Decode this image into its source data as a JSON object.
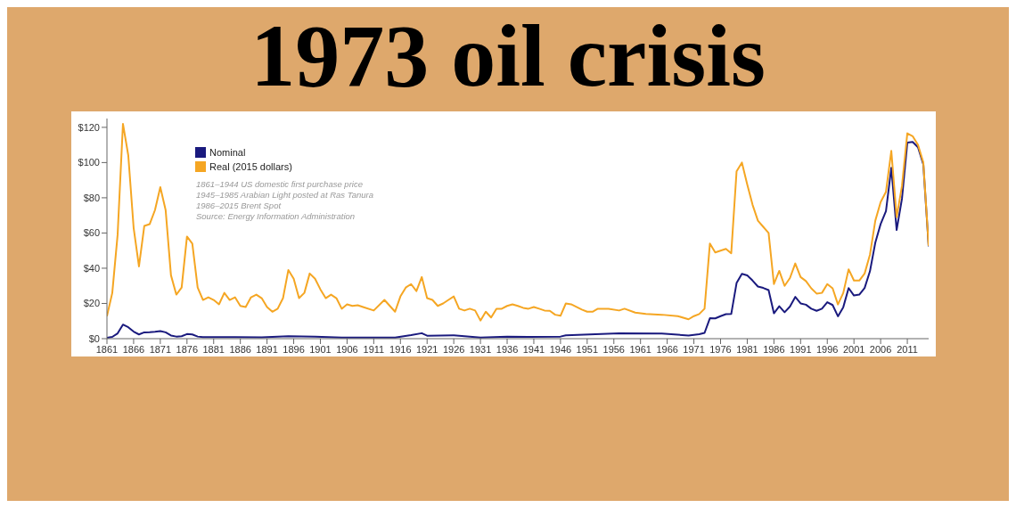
{
  "chart_data": {
    "type": "line",
    "title": "1973 oil crisis",
    "annotations": [
      "1861–1944 US domestic first purchase price",
      "1945–1985 Arabian Light posted at Ras Tanura",
      "1986–2015 Brent Spot",
      "Source: Energy Information Administration"
    ],
    "xlim": [
      1861,
      2015
    ],
    "xticks": [
      1861,
      1866,
      1871,
      1876,
      1881,
      1886,
      1891,
      1896,
      1901,
      1906,
      1911,
      1916,
      1921,
      1926,
      1931,
      1936,
      1941,
      1946,
      1951,
      1956,
      1961,
      1966,
      1971,
      1976,
      1981,
      1986,
      1991,
      1996,
      2001,
      2006,
      2011
    ],
    "ylim": [
      0,
      125
    ],
    "yticks": [
      {
        "value": 0,
        "label": "$0"
      },
      {
        "value": 20,
        "label": "$20"
      },
      {
        "value": 40,
        "label": "$40"
      },
      {
        "value": 60,
        "label": "$60"
      },
      {
        "value": 80,
        "label": "$80"
      },
      {
        "value": 100,
        "label": "$100"
      },
      {
        "value": 120,
        "label": "$120"
      }
    ],
    "grid": false,
    "legend": "top left",
    "marker": "none",
    "line_style": "solid",
    "series": [
      {
        "name": "Nominal",
        "color": "#1a1a7e",
        "x": [
          1861,
          1862,
          1863,
          1864,
          1865,
          1866,
          1867,
          1868,
          1869,
          1870,
          1871,
          1872,
          1873,
          1874,
          1875,
          1876,
          1877,
          1878,
          1879,
          1885,
          1890,
          1895,
          1900,
          1905,
          1910,
          1915,
          1918,
          1920,
          1921,
          1926,
          1931,
          1936,
          1940,
          1946,
          1947,
          1957,
          1965,
          1970,
          1971,
          1972,
          1973,
          1974,
          1975,
          1976,
          1977,
          1978,
          1979,
          1980,
          1981,
          1982,
          1983,
          1984,
          1985,
          1986,
          1987,
          1988,
          1989,
          1990,
          1991,
          1992,
          1993,
          1994,
          1995,
          1996,
          1997,
          1998,
          1999,
          2000,
          2001,
          2002,
          2003,
          2004,
          2005,
          2006,
          2007,
          2008,
          2009,
          2010,
          2011,
          2012,
          2013,
          2014,
          2015
        ],
        "values": [
          0.5,
          1,
          3,
          8,
          6.5,
          4,
          2.4,
          3.6,
          3.7,
          3.9,
          4.3,
          3.6,
          1.8,
          1.2,
          1.4,
          2.6,
          2.4,
          1.2,
          0.9,
          0.9,
          0.8,
          1.4,
          1.2,
          0.6,
          0.6,
          0.6,
          2,
          3.1,
          1.7,
          1.9,
          0.65,
          1.2,
          1,
          1.2,
          1.9,
          3,
          2.9,
          1.8,
          2.2,
          2.5,
          3.3,
          11.6,
          11.5,
          12.8,
          13.9,
          14,
          31.6,
          36.8,
          35.9,
          33,
          29.6,
          28.8,
          27.6,
          14.4,
          18.4,
          15,
          18.2,
          23.7,
          20,
          19.3,
          17,
          15.8,
          17,
          20.7,
          19.1,
          12.7,
          17.9,
          28.7,
          24.5,
          25,
          28.8,
          38.3,
          54.5,
          65.1,
          72.4,
          97,
          61.7,
          79.5,
          111.3,
          111.7,
          108.7,
          99,
          52.4
        ]
      },
      {
        "name": "Real (2015 dollars)",
        "color": "#f5a623",
        "x": [
          1861,
          1862,
          1863,
          1864,
          1865,
          1866,
          1867,
          1868,
          1869,
          1870,
          1871,
          1872,
          1873,
          1874,
          1875,
          1876,
          1877,
          1878,
          1879,
          1880,
          1881,
          1882,
          1883,
          1884,
          1885,
          1886,
          1887,
          1888,
          1889,
          1890,
          1891,
          1892,
          1893,
          1894,
          1895,
          1896,
          1897,
          1898,
          1899,
          1900,
          1901,
          1902,
          1903,
          1904,
          1905,
          1906,
          1907,
          1908,
          1909,
          1911,
          1913,
          1915,
          1916,
          1917,
          1918,
          1919,
          1920,
          1921,
          1922,
          1923,
          1924,
          1925,
          1926,
          1927,
          1928,
          1929,
          1930,
          1931,
          1932,
          1933,
          1934,
          1935,
          1936,
          1937,
          1938,
          1939,
          1940,
          1941,
          1942,
          1943,
          1944,
          1945,
          1946,
          1947,
          1948,
          1949,
          1950,
          1951,
          1952,
          1953,
          1955,
          1957,
          1958,
          1960,
          1962,
          1965,
          1968,
          1970,
          1971,
          1972,
          1973,
          1974,
          1975,
          1976,
          1977,
          1978,
          1979,
          1980,
          1981,
          1982,
          1983,
          1984,
          1985,
          1986,
          1987,
          1988,
          1989,
          1990,
          1991,
          1992,
          1993,
          1994,
          1995,
          1996,
          1997,
          1998,
          1999,
          2000,
          2001,
          2002,
          2003,
          2004,
          2005,
          2006,
          2007,
          2008,
          2009,
          2010,
          2011,
          2012,
          2013,
          2014,
          2015
        ],
        "values": [
          12.8,
          26,
          59,
          122,
          104,
          63,
          41,
          64,
          65,
          73,
          86,
          73,
          36,
          25,
          29,
          58,
          54,
          29,
          22,
          23.5,
          22,
          19.5,
          26,
          22,
          23.5,
          18.6,
          18,
          23.5,
          25,
          23,
          18,
          15.3,
          17,
          23,
          39,
          34,
          23,
          26,
          37,
          34,
          28,
          23,
          25,
          23,
          17,
          19.5,
          18.6,
          19,
          18,
          16,
          22,
          15.3,
          24,
          29,
          31,
          27,
          35,
          23,
          22,
          18.6,
          20,
          22,
          24,
          17,
          16,
          17,
          16,
          10.3,
          15.3,
          12,
          17,
          17,
          18.6,
          19.5,
          18.6,
          17.5,
          17,
          18,
          17,
          16,
          15.8,
          13.6,
          13,
          20,
          19.5,
          18,
          16.5,
          15.3,
          15.3,
          17,
          17,
          16,
          17,
          14.8,
          14,
          13.6,
          12.8,
          11,
          12.8,
          14,
          17,
          54,
          49,
          50,
          51,
          48.5,
          95,
          100,
          87.5,
          76,
          67,
          63.5,
          60,
          31,
          38.5,
          30,
          34.4,
          42.7,
          35,
          32.7,
          28.6,
          25.6,
          26,
          31,
          28.6,
          19.4,
          26,
          39.4,
          33,
          33,
          37,
          47.7,
          67,
          77.6,
          83.4,
          106.6,
          69,
          86.7,
          116.6,
          115,
          110,
          100,
          52.7
        ]
      }
    ]
  }
}
